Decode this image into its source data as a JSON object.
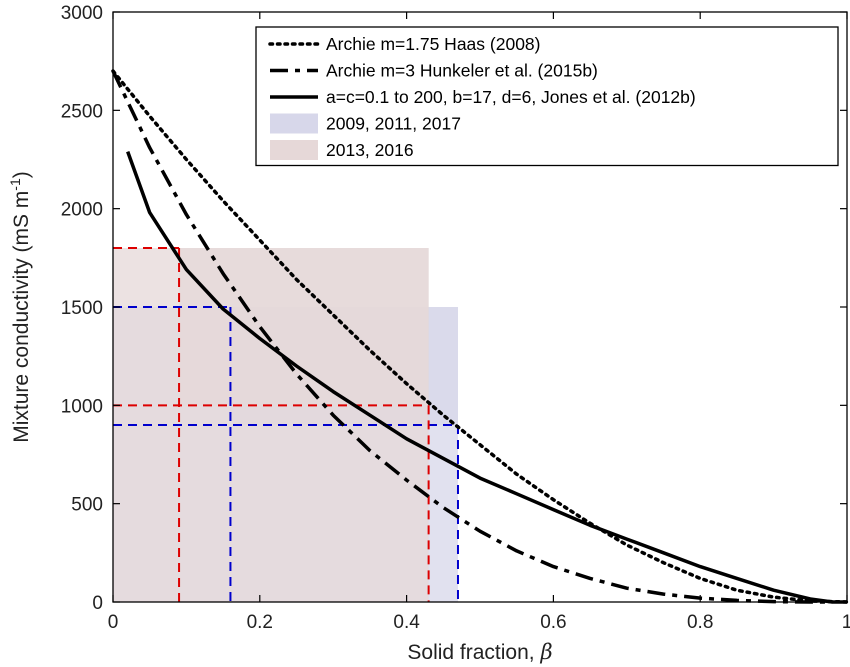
{
  "chart_data": {
    "type": "line",
    "xlabel": "Solid fraction, ",
    "xlabel_symbol": "β",
    "ylabel": "Mixture conductivity (mS m",
    "ylabel_exp": "-1",
    "ylabel_close": ")",
    "xlim": [
      0,
      1
    ],
    "ylim": [
      0,
      3000
    ],
    "x_ticks": [
      "0",
      "0.2",
      "0.4",
      "0.6",
      "0.8",
      "1"
    ],
    "y_ticks": [
      "0",
      "500",
      "1000",
      "1500",
      "2000",
      "2500",
      "3000"
    ],
    "grid": false,
    "legend_position": "top-right",
    "series": [
      {
        "name": "Archie m=1.75 Haas (2008)",
        "style": "dotted",
        "x": [
          0,
          0.05,
          0.1,
          0.15,
          0.2,
          0.25,
          0.3,
          0.35,
          0.4,
          0.45,
          0.5,
          0.55,
          0.6,
          0.65,
          0.7,
          0.75,
          0.8,
          0.85,
          0.9,
          0.95,
          1.0
        ],
        "y": [
          2700,
          2470,
          2250,
          2040,
          1840,
          1640,
          1460,
          1280,
          1110,
          950,
          800,
          650,
          520,
          400,
          290,
          200,
          120,
          60,
          25,
          5,
          0
        ]
      },
      {
        "name": "Archie m=3 Hunkeler et al. (2015b)",
        "style": "dashdot",
        "x": [
          0,
          0.05,
          0.1,
          0.15,
          0.2,
          0.25,
          0.3,
          0.35,
          0.4,
          0.45,
          0.5,
          0.55,
          0.6,
          0.65,
          0.7,
          0.75,
          0.8,
          0.85,
          0.9,
          0.95,
          1.0
        ],
        "y": [
          2700,
          2310,
          1970,
          1670,
          1400,
          1160,
          950,
          770,
          620,
          480,
          360,
          260,
          180,
          120,
          70,
          40,
          20,
          8,
          2,
          0,
          0
        ]
      },
      {
        "name": "a=c=0.1 to 200, b=17, d=6, Jones et al. (2012b)",
        "style": "solid",
        "x": [
          0.02,
          0.05,
          0.1,
          0.15,
          0.2,
          0.25,
          0.3,
          0.35,
          0.4,
          0.45,
          0.5,
          0.55,
          0.6,
          0.65,
          0.7,
          0.75,
          0.8,
          0.85,
          0.9,
          0.95,
          0.98
        ],
        "y": [
          2290,
          1980,
          1690,
          1490,
          1340,
          1200,
          1070,
          950,
          830,
          730,
          630,
          550,
          470,
          390,
          320,
          250,
          180,
          120,
          60,
          15,
          0
        ]
      }
    ],
    "shaded_regions": [
      {
        "name": "2009, 2011, 2017",
        "color": "#d7d7ea",
        "line_color": "#0000cc",
        "x_range": [
          0.16,
          0.47
        ],
        "y_range": [
          900,
          1500
        ]
      },
      {
        "name": "2013, 2016",
        "color": "#e6d8d8",
        "line_color": "#dd0000",
        "x_range": [
          0.09,
          0.43
        ],
        "y_range": [
          1000,
          1800
        ]
      }
    ]
  }
}
